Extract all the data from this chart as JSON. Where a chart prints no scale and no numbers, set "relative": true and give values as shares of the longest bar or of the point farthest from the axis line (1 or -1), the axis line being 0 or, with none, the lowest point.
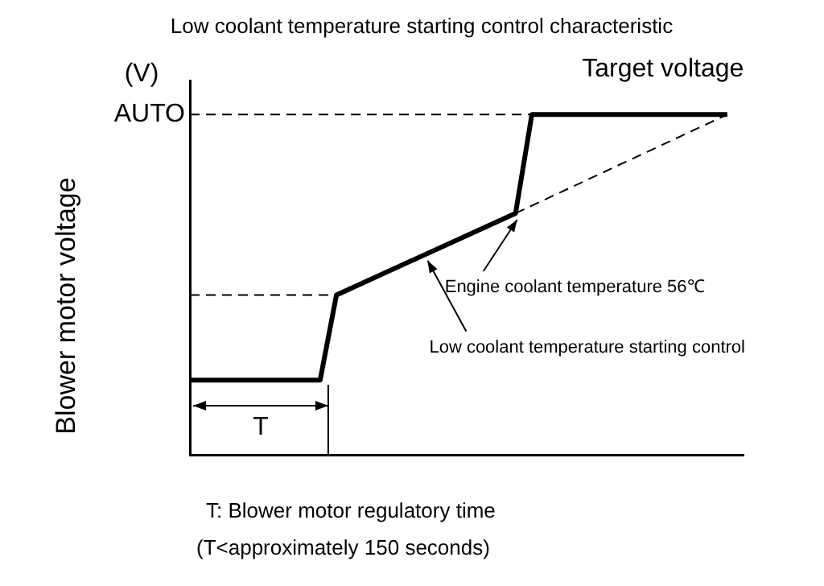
{
  "chart_data": {
    "type": "line",
    "title": "Low coolant temperature starting control characteristic",
    "xlabel": "T: Blower motor regulatory time",
    "ylabel": "Blower motor voltage",
    "relative": true,
    "grid": false,
    "legend": false,
    "marker": "none",
    "categories": [
      null,
      null,
      null,
      null,
      null,
      null,
      null,
      null,
      null,
      null,
      null,
      null,
      null,
      null,
      null,
      null,
      null,
      null,
      null,
      null,
      null,
      null,
      null,
      null,
      null,
      null,
      null,
      null,
      null,
      null,
      null,
      null,
      null,
      null,
      null
    ],
    "series": [
      {
        "name": "Target voltage",
        "color": "#000000",
        "line_style": "solid",
        "values": [
          0.22,
          null,
          null,
          null,
          null,
          null,
          null,
          null,
          0.22,
          0.47,
          null,
          null,
          null,
          null,
          null,
          null,
          null,
          null,
          null,
          null,
          0.71,
          1,
          null,
          null,
          null,
          null,
          null,
          null,
          null,
          null,
          null,
          null,
          null,
          1,
          null
        ]
      },
      {
        "color": "#000000",
        "line_style": "dashed",
        "values": [
          null,
          null,
          null,
          null,
          null,
          null,
          null,
          null,
          null,
          null,
          null,
          null,
          null,
          null,
          null,
          null,
          null,
          null,
          null,
          null,
          0.71,
          null,
          null,
          null,
          null,
          null,
          null,
          null,
          null,
          null,
          null,
          null,
          null,
          1,
          null
        ]
      },
      {
        "color": "#000000",
        "line_style": "dashed",
        "values": [
          0.47,
          null,
          null,
          null,
          null,
          null,
          null,
          null,
          null,
          0.47,
          null,
          null,
          null,
          null,
          null,
          null,
          null,
          null,
          null,
          null,
          null,
          null,
          null,
          null,
          null,
          null,
          null,
          null,
          null,
          null,
          null,
          null,
          null,
          null,
          null
        ]
      },
      {
        "color": "#000000",
        "line_style": "dashed",
        "values": [
          1,
          null,
          null,
          null,
          null,
          null,
          null,
          null,
          null,
          null,
          null,
          null,
          null,
          null,
          null,
          null,
          null,
          null,
          null,
          null,
          null,
          1,
          null,
          null,
          null,
          null,
          null,
          null,
          null,
          null,
          null,
          null,
          null,
          null,
          null
        ]
      }
    ],
    "annotations": [
      "(V)",
      "AUTO",
      "Engine coolant temperature 56℃",
      "Low coolant temperature starting control",
      "T",
      "(T<approximately 150 seconds)"
    ]
  }
}
